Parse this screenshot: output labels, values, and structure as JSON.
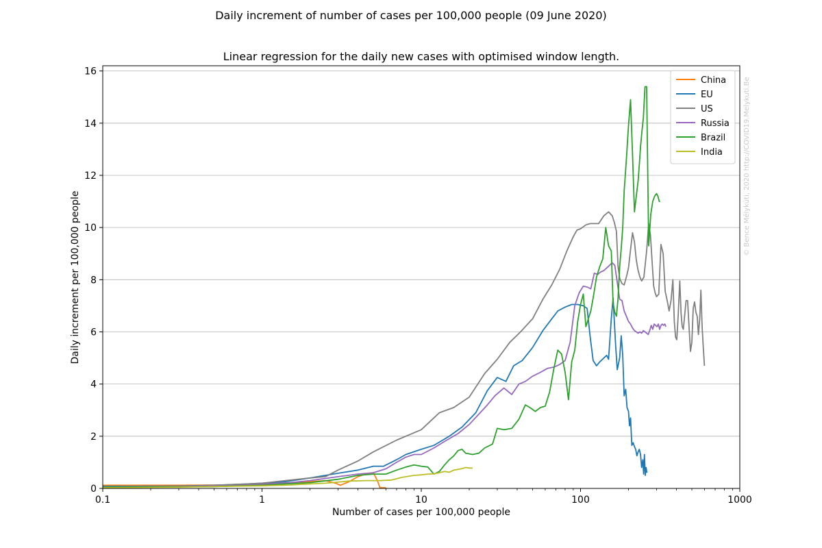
{
  "figure": {
    "suptitle": "Daily increment of number of cases per 100,000 people (09 June 2020)",
    "watermark": "© Bence Mélykúti, 2020  http://COVID19.Melykuti.Be"
  },
  "chart_data": {
    "type": "line",
    "title": "Linear regression for the daily new cases with optimised window length.",
    "xlabel": "Number of cases per 100,000 people",
    "ylabel": "Daily increment per 100,000 people",
    "xscale": "log",
    "xlim": [
      0.1,
      1000
    ],
    "ylim": [
      0,
      16.2
    ],
    "xticks": [
      0.1,
      1,
      10,
      100,
      1000
    ],
    "xtick_labels": [
      "0.1",
      "1",
      "10",
      "100",
      "1000"
    ],
    "yticks": [
      0,
      2,
      4,
      6,
      8,
      10,
      12,
      14,
      16
    ],
    "ytick_labels": [
      "0",
      "2",
      "4",
      "6",
      "8",
      "10",
      "12",
      "14",
      "16"
    ],
    "grid": "horizontal",
    "legend_position": "top-right",
    "series": [
      {
        "name": "China",
        "color": "#ff7f0e",
        "x": [
          0.1,
          0.3,
          0.6,
          1.0,
          1.5,
          2.0,
          2.5,
          2.9,
          3.1,
          3.5,
          4.0,
          4.5,
          5.0,
          5.3,
          5.5,
          6.0
        ],
        "y": [
          0.12,
          0.12,
          0.13,
          0.17,
          0.22,
          0.26,
          0.3,
          0.2,
          0.12,
          0.25,
          0.45,
          0.56,
          0.6,
          0.3,
          0.03,
          0.02
        ]
      },
      {
        "name": "EU",
        "color": "#1f77b4",
        "x": [
          0.1,
          0.3,
          0.5,
          0.8,
          1.0,
          1.4,
          2.0,
          3.0,
          4.0,
          5.0,
          5.8,
          7.0,
          8.0,
          10.0,
          12.0,
          15.0,
          18.0,
          22.0,
          26.0,
          30.0,
          34.0,
          38.0,
          43.0,
          50.0,
          58.0,
          66.0,
          72.0,
          80.0,
          88.0,
          96.0,
          104.0,
          110.0,
          115.0,
          120.0,
          126.0,
          132.0,
          140.0,
          146.0,
          150.0,
          156.0,
          160.0,
          166.0,
          170.0,
          176.0,
          180.0,
          184.0,
          188.0,
          192.0,
          196.0,
          200.0,
          203.0,
          206.0,
          210.0,
          214.0,
          218.0,
          222.0,
          226.0,
          230.0,
          234.0,
          238.0,
          242.0,
          246.0,
          249.0,
          252.0,
          255.0,
          258.0,
          261.0
        ],
        "y": [
          0.08,
          0.09,
          0.12,
          0.17,
          0.2,
          0.26,
          0.4,
          0.58,
          0.7,
          0.85,
          0.85,
          1.1,
          1.3,
          1.5,
          1.65,
          2.0,
          2.35,
          2.9,
          3.75,
          4.25,
          4.1,
          4.7,
          4.9,
          5.4,
          6.05,
          6.5,
          6.8,
          6.95,
          7.05,
          7.05,
          7.0,
          6.9,
          5.8,
          4.9,
          4.7,
          4.85,
          5.0,
          5.1,
          4.95,
          6.5,
          7.3,
          5.5,
          4.55,
          5.0,
          5.85,
          5.1,
          3.55,
          3.8,
          3.1,
          2.95,
          2.4,
          2.7,
          1.65,
          1.75,
          1.6,
          1.5,
          1.25,
          1.4,
          1.5,
          1.3,
          0.8,
          1.1,
          0.55,
          1.3,
          0.5,
          0.8,
          0.6
        ]
      },
      {
        "name": "US",
        "color": "#7f7f7f",
        "x": [
          0.1,
          0.3,
          0.5,
          0.8,
          1.0,
          1.4,
          2.0,
          2.5,
          3.0,
          4.0,
          5.0,
          7.0,
          10.0,
          13.0,
          16.0,
          20.0,
          25.0,
          30.0,
          36.0,
          42.0,
          50.0,
          58.0,
          66.0,
          74.0,
          82.0,
          90.0,
          95.0,
          100.0,
          108.0,
          115.0,
          122.0,
          130.0,
          140.0,
          150.0,
          158.0,
          163.0,
          168.0,
          172.0,
          176.0,
          182.0,
          188.0,
          194.0,
          200.0,
          206.0,
          212.0,
          218.0,
          224.0,
          230.0,
          236.0,
          242.0,
          250.0,
          260.0,
          268.0,
          275.0,
          282.0,
          288.0,
          294.0,
          300.0,
          310.0,
          320.0,
          330.0,
          340.0,
          350.0,
          360.0,
          370.0,
          380.0,
          388.0,
          395.0,
          402.0,
          410.0,
          420.0,
          428.0,
          435.0,
          442.0,
          450.0,
          460.0,
          470.0,
          480.0,
          490.0,
          500.0,
          510.0,
          520.0,
          530.0,
          540.0,
          550.0,
          560.0,
          570.0,
          580.0,
          590.0,
          600.0
        ],
        "y": [
          0.05,
          0.08,
          0.12,
          0.17,
          0.2,
          0.3,
          0.4,
          0.45,
          0.7,
          1.05,
          1.4,
          1.85,
          2.25,
          2.9,
          3.1,
          3.5,
          4.4,
          4.95,
          5.6,
          6.0,
          6.5,
          7.25,
          7.8,
          8.4,
          9.1,
          9.65,
          9.9,
          9.95,
          10.1,
          10.15,
          10.15,
          10.15,
          10.45,
          10.6,
          10.45,
          10.2,
          9.85,
          8.5,
          8.05,
          7.85,
          7.8,
          8.1,
          8.45,
          9.15,
          9.8,
          9.45,
          8.75,
          8.35,
          8.1,
          7.95,
          8.1,
          9.1,
          10.15,
          9.7,
          8.6,
          7.75,
          7.5,
          7.35,
          7.45,
          9.35,
          9.0,
          7.55,
          7.2,
          6.8,
          7.2,
          8.0,
          6.4,
          5.8,
          5.7,
          6.6,
          7.95,
          6.7,
          6.2,
          6.1,
          6.6,
          7.2,
          7.2,
          6.2,
          5.25,
          5.6,
          6.9,
          7.15,
          6.75,
          6.6,
          5.9,
          6.5,
          7.6,
          6.2,
          5.4,
          4.7
        ]
      },
      {
        "name": "Russia",
        "color": "#9467bd",
        "x": [
          0.1,
          0.3,
          0.6,
          1.0,
          1.5,
          2.0,
          2.5,
          3.0,
          4.0,
          5.0,
          6.0,
          7.0,
          8.0,
          9.0,
          10.0,
          12.0,
          14.0,
          17.0,
          20.0,
          23.0,
          26.0,
          29.0,
          33.0,
          37.0,
          41.0,
          45.0,
          50.0,
          56.0,
          62.0,
          68.0,
          74.0,
          80.0,
          86.0,
          92.0,
          98.0,
          104.0,
          110.0,
          116.0,
          122.0,
          128.0,
          134.0,
          140.0,
          146.0,
          152.0,
          158.0,
          164.0,
          170.0,
          176.0,
          182.0,
          188.0,
          194.0,
          200.0,
          206.0,
          212.0,
          218.0,
          224.0,
          230.0,
          236.0,
          242.0,
          248.0,
          254.0,
          260.0,
          266.0,
          272.0,
          278.0,
          284.0,
          290.0,
          296.0,
          302.0,
          308.0,
          314.0,
          320.0,
          326.0,
          332.0,
          338.0,
          344.0
        ],
        "y": [
          0.05,
          0.08,
          0.1,
          0.15,
          0.22,
          0.3,
          0.38,
          0.45,
          0.55,
          0.6,
          0.75,
          1.0,
          1.2,
          1.3,
          1.3,
          1.55,
          1.8,
          2.1,
          2.45,
          2.85,
          3.2,
          3.55,
          3.85,
          3.6,
          4.0,
          4.1,
          4.3,
          4.45,
          4.6,
          4.65,
          4.75,
          4.9,
          5.6,
          7.0,
          7.5,
          7.75,
          7.72,
          7.65,
          8.25,
          8.2,
          8.3,
          8.35,
          8.45,
          8.55,
          8.65,
          8.55,
          7.9,
          7.25,
          7.2,
          6.8,
          6.6,
          6.4,
          6.3,
          6.15,
          6.05,
          6.0,
          5.95,
          6.0,
          5.95,
          6.05,
          6.0,
          5.95,
          5.9,
          6.05,
          6.25,
          6.1,
          6.3,
          6.25,
          6.2,
          6.3,
          6.1,
          6.25,
          6.3,
          6.25,
          6.3,
          6.2
        ]
      },
      {
        "name": "Brazil",
        "color": "#2ca02c",
        "x": [
          0.1,
          0.5,
          1.0,
          2.0,
          3.0,
          4.0,
          5.0,
          6.0,
          7.0,
          8.0,
          9.0,
          10.0,
          11.0,
          12.0,
          13.0,
          14.0,
          15.0,
          16.0,
          17.0,
          18.0,
          19.0,
          21.0,
          23.0,
          25.0,
          28.0,
          30.0,
          33.0,
          37.0,
          41.0,
          45.0,
          48.0,
          52.0,
          56.0,
          60.0,
          64.0,
          68.0,
          72.0,
          76.0,
          80.0,
          84.0,
          88.0,
          92.0,
          96.0,
          100.0,
          104.0,
          108.0,
          112.0,
          116.0,
          120.0,
          126.0,
          132.0,
          138.0,
          144.0,
          150.0,
          156.0,
          160.0,
          164.0,
          168.0,
          172.0,
          176.0,
          180.0,
          184.0,
          188.0,
          194.0,
          200.0,
          206.0,
          212.0,
          218.0,
          224.0,
          230.0,
          234.0,
          238.0,
          243.0,
          248.0,
          254.0,
          260.0,
          268.0,
          276.0,
          284.0,
          292.0,
          300.0,
          306.0,
          312.0,
          316.0,
          320.0,
          326.0,
          331.0,
          336.0,
          342.0
        ],
        "y": [
          0.05,
          0.07,
          0.12,
          0.22,
          0.35,
          0.5,
          0.55,
          0.55,
          0.7,
          0.82,
          0.9,
          0.85,
          0.82,
          0.55,
          0.65,
          0.9,
          1.1,
          1.25,
          1.45,
          1.5,
          1.35,
          1.3,
          1.35,
          1.55,
          1.7,
          2.3,
          2.25,
          2.3,
          2.65,
          3.2,
          3.1,
          2.95,
          3.1,
          3.15,
          3.7,
          4.6,
          5.3,
          5.15,
          4.45,
          3.4,
          4.85,
          5.3,
          6.4,
          7.05,
          7.45,
          6.2,
          6.5,
          6.8,
          7.3,
          8.1,
          8.5,
          8.8,
          10.0,
          9.3,
          9.1,
          7.1,
          6.75,
          6.6,
          7.3,
          8.5,
          9.2,
          10.0,
          11.4,
          12.6,
          13.9,
          14.9,
          12.8,
          10.6,
          11.2,
          11.8,
          12.4,
          13.1,
          13.7,
          14.2,
          15.4,
          15.4,
          9.3,
          10.5,
          11.0,
          11.2,
          11.3,
          11.2,
          11.0,
          11.0,
          11.0,
          11.0,
          11.0,
          11.0,
          11.0
        ],
        "ytrim": true
      },
      {
        "name": "India",
        "color": "#bcbd22",
        "x": [
          0.1,
          0.3,
          0.6,
          1.0,
          1.5,
          2.0,
          2.5,
          3.0,
          3.5,
          4.0,
          4.5,
          5.0,
          5.5,
          6.0,
          6.5,
          7.0,
          7.5,
          8.0,
          9.0,
          10.0,
          11.0,
          12.0,
          13.0,
          14.0,
          15.0,
          16.0,
          17.0,
          18.0,
          19.0,
          20.0,
          21.0
        ],
        "y": [
          0.03,
          0.05,
          0.08,
          0.1,
          0.13,
          0.17,
          0.2,
          0.24,
          0.28,
          0.29,
          0.3,
          0.3,
          0.3,
          0.31,
          0.32,
          0.37,
          0.42,
          0.45,
          0.5,
          0.52,
          0.55,
          0.56,
          0.6,
          0.65,
          0.62,
          0.7,
          0.73,
          0.76,
          0.8,
          0.78,
          0.78
        ]
      }
    ]
  }
}
